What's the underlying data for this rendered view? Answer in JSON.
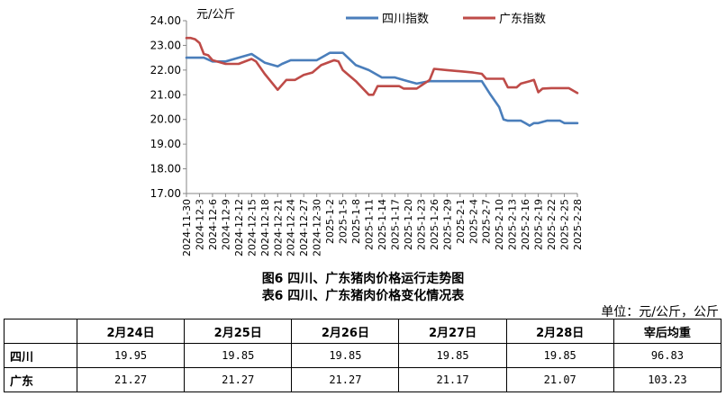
{
  "chart_data": {
    "type": "line",
    "unit_label": "元/公斤",
    "ylim": [
      17.0,
      24.0
    ],
    "y_ticks": [
      "17.00",
      "18.00",
      "19.00",
      "20.00",
      "21.00",
      "22.00",
      "23.00",
      "24.00"
    ],
    "x_tick_labels": [
      "2024-11-30",
      "2024-12-3",
      "2024-12-6",
      "2024-12-9",
      "2024-12-12",
      "2024-12-15",
      "2024-12-18",
      "2024-12-21",
      "2024-12-24",
      "2024-12-27",
      "2024-12-30",
      "2025-1-2",
      "2025-1-5",
      "2025-1-8",
      "2025-1-11",
      "2025-1-14",
      "2025-1-17",
      "2025-1-20",
      "2025-1-23",
      "2025-1-26",
      "2025-1-29",
      "2025-2-1",
      "2025-2-4",
      "2025-2-7",
      "2025-2-10",
      "2025-2-13",
      "2025-2-16",
      "2025-2-19",
      "2025-2-22",
      "2025-2-25",
      "2025-2-28"
    ],
    "legend_position": "top",
    "grid": false,
    "series": [
      {
        "name": "四川指数",
        "color": "#4a7ebb",
        "points": [
          [
            0,
            22.5
          ],
          [
            4,
            22.5
          ],
          [
            6,
            22.35
          ],
          [
            9,
            22.35
          ],
          [
            12,
            22.5
          ],
          [
            15,
            22.65
          ],
          [
            18,
            22.3
          ],
          [
            21,
            22.15
          ],
          [
            22,
            22.25
          ],
          [
            24,
            22.4
          ],
          [
            27,
            22.4
          ],
          [
            30,
            22.4
          ],
          [
            33,
            22.7
          ],
          [
            36,
            22.7
          ],
          [
            39,
            22.2
          ],
          [
            42,
            22.0
          ],
          [
            45,
            21.7
          ],
          [
            48,
            21.7
          ],
          [
            51,
            21.55
          ],
          [
            53,
            21.45
          ],
          [
            56,
            21.55
          ],
          [
            59,
            21.55
          ],
          [
            62,
            21.55
          ],
          [
            65,
            21.55
          ],
          [
            68,
            21.55
          ],
          [
            70,
            21.0
          ],
          [
            72,
            20.5
          ],
          [
            73,
            20.0
          ],
          [
            74,
            19.95
          ],
          [
            76,
            19.95
          ],
          [
            77,
            19.95
          ],
          [
            78,
            19.85
          ],
          [
            79,
            19.75
          ],
          [
            80,
            19.85
          ],
          [
            81,
            19.85
          ],
          [
            83,
            19.95
          ],
          [
            86,
            19.95
          ],
          [
            87,
            19.85
          ],
          [
            90,
            19.85
          ]
        ]
      },
      {
        "name": "广东指数",
        "color": "#be4b48",
        "points": [
          [
            0,
            23.3
          ],
          [
            1,
            23.3
          ],
          [
            2,
            23.25
          ],
          [
            3,
            23.1
          ],
          [
            4,
            22.65
          ],
          [
            5,
            22.6
          ],
          [
            6,
            22.4
          ],
          [
            8,
            22.3
          ],
          [
            9,
            22.25
          ],
          [
            12,
            22.25
          ],
          [
            15,
            22.45
          ],
          [
            16,
            22.35
          ],
          [
            18,
            21.85
          ],
          [
            21,
            21.2
          ],
          [
            23,
            21.6
          ],
          [
            25,
            21.6
          ],
          [
            27,
            21.8
          ],
          [
            29,
            21.9
          ],
          [
            31,
            22.2
          ],
          [
            34,
            22.4
          ],
          [
            35,
            22.35
          ],
          [
            36,
            22.0
          ],
          [
            39,
            21.55
          ],
          [
            42,
            21.0
          ],
          [
            43,
            21.0
          ],
          [
            44,
            21.35
          ],
          [
            47,
            21.35
          ],
          [
            49,
            21.35
          ],
          [
            50,
            21.25
          ],
          [
            53,
            21.25
          ],
          [
            56,
            21.6
          ],
          [
            57,
            22.05
          ],
          [
            60,
            22.0
          ],
          [
            63,
            21.95
          ],
          [
            66,
            21.9
          ],
          [
            68,
            21.85
          ],
          [
            69,
            21.65
          ],
          [
            71,
            21.65
          ],
          [
            73,
            21.65
          ],
          [
            74,
            21.3
          ],
          [
            76,
            21.3
          ],
          [
            77,
            21.45
          ],
          [
            79,
            21.55
          ],
          [
            80,
            21.6
          ],
          [
            81,
            21.1
          ],
          [
            82,
            21.25
          ],
          [
            84,
            21.27
          ],
          [
            85,
            21.27
          ],
          [
            86,
            21.27
          ],
          [
            87,
            21.27
          ],
          [
            88,
            21.27
          ],
          [
            89,
            21.17
          ],
          [
            90,
            21.07
          ]
        ]
      }
    ]
  },
  "captions": {
    "figure": "图6 四川、广东猪肉价格运行走势图",
    "table": "表6 四川、广东猪肉价格变化情况表"
  },
  "table": {
    "unit": "单位：元/公斤，公斤",
    "headers": [
      "",
      "2月24日",
      "2月25日",
      "2月26日",
      "2月27日",
      "2月28日",
      "宰后均重"
    ],
    "rows": [
      {
        "label": "四川",
        "values": [
          "19.95",
          "19.85",
          "19.85",
          "19.85",
          "19.85",
          "96.83"
        ]
      },
      {
        "label": "广东",
        "values": [
          "21.27",
          "21.27",
          "21.27",
          "21.17",
          "21.07",
          "103.23"
        ]
      }
    ]
  }
}
